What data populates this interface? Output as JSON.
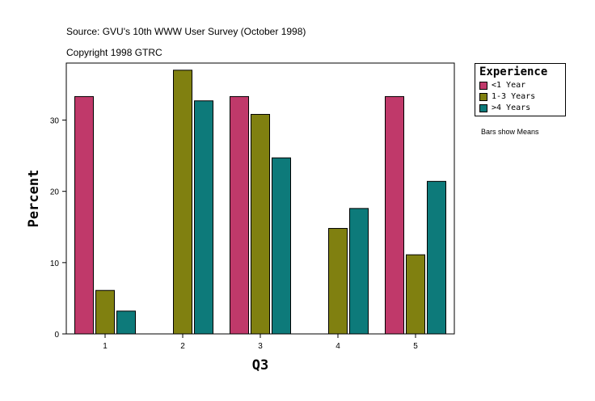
{
  "header": {
    "source": "Source: GVU's 10th WWW User Survey (October 1998)",
    "copyright": "Copyright 1998 GTRC"
  },
  "note": "Bars show Means",
  "colors": {
    "lt1": "#c0396a",
    "y1to3": "#808010",
    "gt4": "#0d7a7a"
  },
  "chart_data": {
    "type": "bar",
    "title": "",
    "xlabel": "Q3",
    "ylabel": "Percent",
    "categories": [
      "1",
      "2",
      "3",
      "4",
      "5"
    ],
    "ylim": [
      0,
      38
    ],
    "yticks": [
      0,
      10,
      20,
      30
    ],
    "legend_title": "Experience",
    "legend_position": "top-right",
    "series": [
      {
        "name": "<1 Year",
        "color": "#c0396a",
        "values": [
          33.3,
          null,
          33.3,
          null,
          33.3
        ]
      },
      {
        "name": "1-3 Years",
        "color": "#808010",
        "values": [
          6.1,
          37.0,
          30.8,
          14.8,
          11.1
        ]
      },
      {
        "name": ">4 Years",
        "color": "#0d7a7a",
        "values": [
          3.2,
          32.7,
          24.7,
          17.6,
          21.4
        ]
      }
    ]
  }
}
